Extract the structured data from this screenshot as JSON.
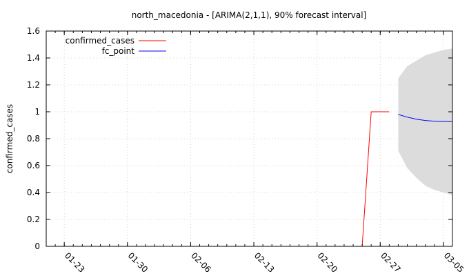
{
  "chart_data": {
    "type": "line",
    "title": "north_macedonia -  [ARIMA(2,1,1), 90% forecast interval]",
    "ylabel": "confirmed_cases",
    "xlabel": "",
    "ylim": [
      0,
      1.6
    ],
    "xlim": [
      "2020-01-21",
      "2020-03-06"
    ],
    "grid": true,
    "legend_position": "top-left",
    "y_ticks": [
      "0",
      "0.2",
      "0.4",
      "0.6",
      "0.8",
      "1",
      "1.2",
      "1.4",
      "1.6"
    ],
    "x_ticks": [
      {
        "date": "2020-01-23",
        "label": "01-23"
      },
      {
        "date": "2020-01-30",
        "label": "01-30"
      },
      {
        "date": "2020-02-06",
        "label": "02-06"
      },
      {
        "date": "2020-02-13",
        "label": "02-13"
      },
      {
        "date": "2020-02-20",
        "label": "02-20"
      },
      {
        "date": "2020-02-27",
        "label": "02-27"
      },
      {
        "date": "2020-03-05",
        "label": "03-05"
      }
    ],
    "series": [
      {
        "name": "confirmed_cases",
        "color": "#ff0000",
        "points": [
          {
            "x": "2020-02-25",
            "y": 0
          },
          {
            "x": "2020-02-26",
            "y": 1
          },
          {
            "x": "2020-02-27",
            "y": 1
          },
          {
            "x": "2020-02-28",
            "y": 1
          }
        ]
      },
      {
        "name": "fc_point",
        "color": "#0000ff",
        "points": [
          {
            "x": "2020-02-29",
            "y": 0.98
          },
          {
            "x": "2020-03-01",
            "y": 0.96
          },
          {
            "x": "2020-03-02",
            "y": 0.945
          },
          {
            "x": "2020-03-03",
            "y": 0.935
          },
          {
            "x": "2020-03-04",
            "y": 0.93
          },
          {
            "x": "2020-03-05",
            "y": 0.928
          },
          {
            "x": "2020-03-06",
            "y": 0.927
          }
        ]
      }
    ],
    "forecast_interval": {
      "color": "#dcdcdc",
      "x": [
        "2020-02-29",
        "2020-03-01",
        "2020-03-02",
        "2020-03-03",
        "2020-03-04",
        "2020-03-05",
        "2020-03-06"
      ],
      "upper": [
        1.25,
        1.34,
        1.38,
        1.42,
        1.44,
        1.46,
        1.47
      ],
      "lower": [
        0.71,
        0.58,
        0.51,
        0.45,
        0.42,
        0.4,
        0.38
      ]
    }
  }
}
